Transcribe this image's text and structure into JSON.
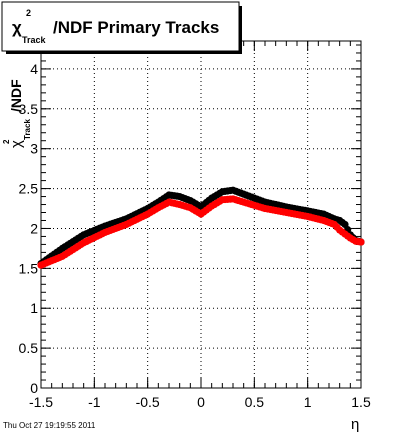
{
  "chart_data": {
    "type": "scatter",
    "title": {
      "chi": "χ",
      "sup": "2",
      "sub": "Track",
      "rest": "/NDF  Primary Tracks"
    },
    "xlabel": "η",
    "ylabel": {
      "chi": "χ",
      "sup": "2",
      "sub": "Track",
      "rest": "/NDF"
    },
    "xlim": [
      -1.5,
      1.5
    ],
    "ylim": [
      0,
      4.35
    ],
    "xticks": [
      {
        "v": -1.5,
        "label": "-1.5"
      },
      {
        "v": -1.0,
        "label": "-1"
      },
      {
        "v": -0.5,
        "label": "-0.5"
      },
      {
        "v": 0.0,
        "label": "0"
      },
      {
        "v": 0.5,
        "label": "0.5"
      },
      {
        "v": 1.0,
        "label": "1"
      },
      {
        "v": 1.5,
        "label": "1.5"
      }
    ],
    "yticks": [
      {
        "v": 0,
        "label": "0"
      },
      {
        "v": 0.5,
        "label": "0.5"
      },
      {
        "v": 1,
        "label": "1"
      },
      {
        "v": 1.5,
        "label": "1.5"
      },
      {
        "v": 2,
        "label": "2"
      },
      {
        "v": 2.5,
        "label": "2.5"
      },
      {
        "v": 3,
        "label": "3"
      },
      {
        "v": 3.5,
        "label": "3.5"
      },
      {
        "v": 4,
        "label": "4"
      }
    ],
    "grid": true,
    "series": [
      {
        "color": "#000000",
        "points": [
          [
            -1.5,
            1.56
          ],
          [
            -1.3,
            1.75
          ],
          [
            -1.1,
            1.92
          ],
          [
            -0.9,
            2.03
          ],
          [
            -0.7,
            2.12
          ],
          [
            -0.5,
            2.25
          ],
          [
            -0.4,
            2.33
          ],
          [
            -0.3,
            2.42
          ],
          [
            -0.2,
            2.4
          ],
          [
            -0.1,
            2.35
          ],
          [
            0.0,
            2.27
          ],
          [
            0.1,
            2.38
          ],
          [
            0.2,
            2.46
          ],
          [
            0.3,
            2.48
          ],
          [
            0.4,
            2.43
          ],
          [
            0.6,
            2.33
          ],
          [
            0.8,
            2.27
          ],
          [
            1.0,
            2.22
          ],
          [
            1.15,
            2.18
          ],
          [
            1.25,
            2.12
          ],
          [
            1.3,
            2.1
          ],
          [
            1.35,
            2.05
          ],
          [
            1.4,
            1.92
          ],
          [
            1.45,
            1.85
          ],
          [
            1.5,
            1.83
          ]
        ]
      },
      {
        "color": "#ff0000",
        "points": [
          [
            -1.5,
            1.54
          ],
          [
            -1.3,
            1.65
          ],
          [
            -1.1,
            1.82
          ],
          [
            -0.9,
            1.95
          ],
          [
            -0.7,
            2.05
          ],
          [
            -0.5,
            2.18
          ],
          [
            -0.4,
            2.26
          ],
          [
            -0.3,
            2.33
          ],
          [
            -0.2,
            2.3
          ],
          [
            -0.1,
            2.26
          ],
          [
            0.0,
            2.18
          ],
          [
            0.1,
            2.28
          ],
          [
            0.2,
            2.36
          ],
          [
            0.3,
            2.37
          ],
          [
            0.4,
            2.33
          ],
          [
            0.6,
            2.25
          ],
          [
            0.8,
            2.2
          ],
          [
            1.0,
            2.15
          ],
          [
            1.15,
            2.1
          ],
          [
            1.25,
            2.05
          ],
          [
            1.3,
            1.98
          ],
          [
            1.35,
            1.93
          ],
          [
            1.4,
            1.88
          ],
          [
            1.45,
            1.84
          ],
          [
            1.5,
            1.83
          ]
        ]
      }
    ]
  },
  "footer": {
    "timestamp": "Thu Oct 27 19:19:55 2011"
  }
}
